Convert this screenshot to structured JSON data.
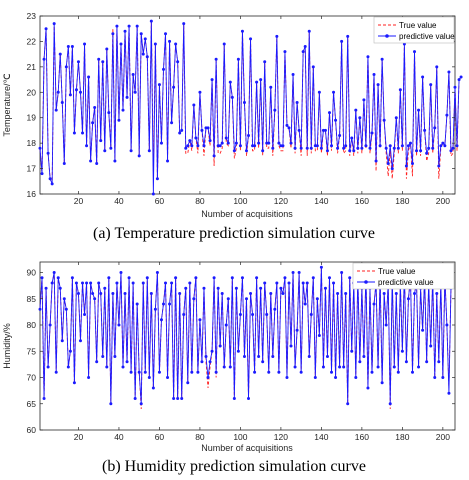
{
  "chart_data": [
    {
      "type": "line",
      "caption": "(a) Temperature prediction simulation curve",
      "xlabel": "Number of acquisitions",
      "ylabel": "Temperature/℃",
      "xlim": [
        1,
        206
      ],
      "ylim": [
        16,
        23
      ],
      "xticks": [
        20,
        40,
        60,
        80,
        100,
        120,
        140,
        160,
        180,
        200
      ],
      "yticks": [
        16,
        17,
        18,
        19,
        20,
        21,
        22,
        23
      ],
      "legend_position": "top-right",
      "colors": {
        "true": "#ff2020",
        "pred": "#1a1aff"
      },
      "series": [
        {
          "name": "True value",
          "style": "dashed",
          "values": [
            17.8,
            16.8,
            21.3,
            22.5,
            17.6,
            16.6,
            16.4,
            22.7,
            19.3,
            20.0,
            21.5,
            19.6,
            17.2,
            21.0,
            21.8,
            19.9,
            21.8,
            18.4,
            20.1,
            21.2,
            20.0,
            18.4,
            21.9,
            17.9,
            20.6,
            17.3,
            18.8,
            19.4,
            17.2,
            21.3,
            18.1,
            21.2,
            17.7,
            21.7,
            19.2,
            17.8,
            22.5,
            17.3,
            22.6,
            18.9,
            21.9,
            19.3,
            22.4,
            19.8,
            22.6,
            17.7,
            20.7,
            20.0,
            22.6,
            17.5,
            22.3,
            21.5,
            22.1,
            21.4,
            17.7,
            22.8,
            16.9,
            21.9,
            16.6,
            20.3,
            18.0,
            20.9,
            22.3,
            17.3,
            22.0,
            18.8,
            20.2,
            21.9,
            21.2,
            18.4,
            18.5,
            22.7,
            17.6,
            17.6,
            18.1,
            17.7,
            19.5,
            18.2,
            17.6,
            20.0,
            18.5,
            17.5,
            18.6,
            18.6,
            17.9,
            20.5,
            17.1,
            21.3,
            17.6,
            17.6,
            17.8,
            21.9,
            18.0,
            17.9,
            20.4,
            19.8,
            17.4,
            17.8,
            21.3,
            17.7,
            22.4,
            19.6,
            17.5,
            18.3,
            22.1,
            17.7,
            17.7,
            20.4,
            17.8,
            20.5,
            17.5,
            21.2,
            17.8,
            17.8,
            20.2,
            17.5,
            19.3,
            22.2,
            17.9,
            17.7,
            17.7,
            21.6,
            18.7,
            18.6,
            17.8,
            20.7,
            17.6,
            19.6,
            18.5,
            17.5,
            21.6,
            21.8,
            17.5,
            22.4,
            17.6,
            21.0,
            17.7,
            17.7,
            20.0,
            17.6,
            18.5,
            18.5,
            17.5,
            19.2,
            17.7,
            20.0,
            18.9,
            17.6,
            18.3,
            22.0,
            17.6,
            17.7,
            22.2,
            17.5,
            18.2,
            17.5,
            19.3,
            17.6,
            19.0,
            17.6,
            19.7,
            17.8,
            21.4,
            17.6,
            18.4,
            20.7,
            16.9,
            20.3,
            17.8,
            21.3,
            18.9,
            17.6,
            16.7,
            17.7,
            16.6,
            17.6,
            19.0,
            17.6,
            20.1,
            17.7,
            21.9,
            16.6,
            17.7,
            18.0,
            16.7,
            21.6,
            17.5,
            19.3,
            17.5,
            20.6,
            18.5,
            17.3,
            17.6,
            20.3,
            17.6,
            18.6,
            21.0,
            16.6,
            17.8,
            18.0,
            17.9,
            19.1,
            20.8,
            17.5,
            17.6,
            20.2,
            17.7,
            20.5,
            20.6
          ]
        },
        {
          "name": "predictive value",
          "style": "solid-markers",
          "values": [
            17.8,
            16.8,
            21.3,
            22.5,
            17.6,
            16.6,
            16.4,
            22.7,
            19.3,
            20.0,
            21.5,
            19.6,
            17.2,
            21.0,
            21.8,
            19.9,
            21.8,
            18.4,
            20.1,
            21.2,
            20.0,
            18.4,
            21.9,
            17.9,
            20.6,
            17.3,
            18.8,
            19.4,
            17.2,
            21.3,
            18.1,
            21.2,
            17.7,
            21.7,
            19.2,
            17.8,
            22.3,
            17.3,
            22.6,
            18.9,
            21.9,
            19.3,
            22.4,
            19.8,
            22.6,
            17.7,
            20.7,
            20.0,
            22.6,
            17.5,
            22.3,
            21.5,
            22.1,
            21.4,
            17.7,
            22.8,
            16.0,
            21.9,
            16.6,
            20.3,
            18.0,
            20.9,
            22.3,
            17.3,
            22.0,
            18.8,
            20.2,
            21.9,
            21.2,
            18.4,
            18.5,
            22.7,
            17.8,
            17.9,
            18.1,
            17.9,
            19.5,
            18.2,
            17.9,
            20.0,
            18.5,
            17.9,
            18.6,
            18.6,
            18.1,
            20.5,
            17.5,
            21.3,
            17.9,
            17.9,
            18.0,
            21.9,
            18.2,
            18.0,
            20.4,
            19.8,
            17.7,
            18.0,
            21.3,
            17.9,
            22.4,
            19.6,
            17.7,
            18.3,
            22.1,
            17.9,
            17.9,
            20.4,
            18.0,
            20.5,
            17.7,
            21.2,
            18.0,
            18.0,
            20.2,
            17.8,
            19.3,
            22.2,
            18.0,
            17.9,
            17.9,
            21.6,
            18.7,
            18.6,
            18.0,
            20.7,
            17.8,
            19.6,
            18.5,
            17.8,
            21.6,
            21.8,
            17.8,
            22.4,
            17.8,
            21.0,
            17.9,
            17.9,
            20.0,
            17.8,
            18.5,
            18.5,
            17.7,
            19.2,
            17.9,
            20.0,
            18.9,
            17.8,
            18.3,
            22.0,
            17.8,
            17.9,
            22.2,
            17.7,
            18.2,
            17.7,
            19.3,
            17.8,
            19.0,
            17.8,
            19.7,
            17.9,
            21.4,
            17.8,
            18.4,
            20.7,
            17.3,
            20.3,
            17.9,
            21.3,
            18.9,
            17.8,
            17.2,
            17.9,
            17.0,
            17.8,
            19.0,
            17.8,
            20.1,
            17.9,
            21.9,
            17.1,
            17.9,
            18.0,
            17.2,
            21.6,
            17.7,
            19.3,
            17.7,
            20.6,
            18.5,
            17.6,
            17.8,
            20.3,
            17.8,
            18.6,
            21.0,
            17.1,
            17.9,
            18.0,
            17.9,
            19.1,
            20.8,
            17.7,
            17.8,
            20.2,
            17.9,
            20.5,
            20.6
          ]
        }
      ]
    },
    {
      "type": "line",
      "caption": "(b) Humidity prediction simulation curve",
      "xlabel": "Number of acquisitions",
      "ylabel": "Humidity/%",
      "xlim": [
        1,
        206
      ],
      "ylim": [
        60,
        92
      ],
      "xticks": [
        20,
        40,
        60,
        80,
        100,
        120,
        140,
        160,
        180,
        200
      ],
      "yticks": [
        60,
        65,
        70,
        75,
        80,
        85,
        90
      ],
      "legend_position": "top-right",
      "colors": {
        "true": "#ff2020",
        "pred": "#1a1aff"
      },
      "series": [
        {
          "name": "True value",
          "style": "dashed",
          "values": [
            83.0,
            89.0,
            66.0,
            87.0,
            72.0,
            80.0,
            88.0,
            90.0,
            71.0,
            89.0,
            87.0,
            77.0,
            85.0,
            83.0,
            72.0,
            75.0,
            89.0,
            69.0,
            88.0,
            86.0,
            77.0,
            88.0,
            82.0,
            88.0,
            70.0,
            88.0,
            86.0,
            85.0,
            73.0,
            88.0,
            86.0,
            74.0,
            87.0,
            72.0,
            89.0,
            65.0,
            86.0,
            74.0,
            88.0,
            80.0,
            90.0,
            72.0,
            86.0,
            73.0,
            89.0,
            71.0,
            88.0,
            66.0,
            84.0,
            71.0,
            64.0,
            88.0,
            71.0,
            89.0,
            70.0,
            86.0,
            68.0,
            83.0,
            90.0,
            71.0,
            81.0,
            84.0,
            88.0,
            70.0,
            84.0,
            88.0,
            66.0,
            89.0,
            66.0,
            86.0,
            66.0,
            82.0,
            87.0,
            69.0,
            88.0,
            71.0,
            85.0,
            89.0,
            71.0,
            81.0,
            73.0,
            87.0,
            73.0,
            68.0,
            72.0,
            75.0,
            89.0,
            70.0,
            87.0,
            76.0,
            86.0,
            72.0,
            80.0,
            85.0,
            72.0,
            89.0,
            66.0,
            87.0,
            75.0,
            82.0,
            89.0,
            74.0,
            85.0,
            66.0,
            86.0,
            82.0,
            71.0,
            89.0,
            74.0,
            87.0,
            73.0,
            88.0,
            82.0,
            71.0,
            86.0,
            74.0,
            83.0,
            88.0,
            71.0,
            87.0,
            86.0,
            89.0,
            70.0,
            88.0,
            76.0,
            90.0,
            72.0,
            79.0,
            90.0,
            71.0,
            88.0,
            84.0,
            88.0,
            74.0,
            82.0,
            89.0,
            70.0,
            85.0,
            78.0,
            91.0,
            72.0,
            87.0,
            74.0,
            89.0,
            71.0,
            88.0,
            70.0,
            86.0,
            72.0,
            90.0,
            72.0,
            86.0,
            65.0,
            89.0,
            75.0,
            88.0,
            70.0,
            89.0,
            73.0,
            87.0,
            74.0,
            90.0,
            68.0,
            87.0,
            71.0,
            84.0,
            88.0,
            72.0,
            89.0,
            69.0,
            86.0,
            80.0,
            88.0,
            64.0,
            89.0,
            72.0,
            86.0,
            71.0,
            88.0,
            75.0,
            90.0,
            73.0,
            85.0,
            89.0,
            71.0,
            86.0,
            88.0,
            72.0,
            87.0,
            79.0,
            89.0,
            73.0,
            88.0,
            76.0,
            89.0,
            70.0,
            86.0,
            73.0,
            88.0,
            70.0,
            89.0,
            80.0,
            68.0,
            87.0
          ]
        },
        {
          "name": "predictive value",
          "style": "solid-markers",
          "values": [
            83.0,
            89.0,
            66.0,
            87.0,
            72.0,
            80.0,
            88.0,
            90.0,
            71.0,
            89.0,
            87.0,
            77.0,
            85.0,
            83.0,
            72.0,
            75.0,
            89.0,
            69.0,
            88.0,
            86.0,
            77.0,
            88.0,
            82.0,
            88.0,
            70.0,
            88.0,
            86.0,
            85.0,
            73.0,
            88.0,
            86.0,
            74.0,
            87.0,
            72.0,
            89.0,
            65.0,
            86.0,
            74.0,
            88.0,
            80.0,
            90.0,
            72.0,
            86.0,
            73.0,
            89.0,
            71.0,
            88.0,
            66.0,
            84.0,
            71.0,
            65.0,
            88.0,
            71.0,
            89.0,
            70.0,
            86.0,
            68.0,
            83.0,
            90.0,
            71.0,
            81.0,
            84.0,
            88.0,
            70.0,
            84.0,
            88.0,
            66.0,
            89.0,
            66.0,
            86.0,
            66.0,
            82.0,
            87.0,
            69.0,
            88.0,
            71.0,
            85.0,
            89.0,
            71.0,
            81.0,
            73.0,
            87.0,
            74.0,
            70.0,
            73.0,
            75.0,
            89.0,
            71.0,
            87.0,
            76.0,
            86.0,
            72.0,
            80.0,
            85.0,
            72.0,
            89.0,
            66.0,
            87.0,
            75.0,
            82.0,
            89.0,
            74.0,
            85.0,
            66.0,
            86.0,
            82.0,
            71.0,
            89.0,
            74.0,
            87.0,
            73.0,
            88.0,
            82.0,
            71.0,
            86.0,
            74.0,
            83.0,
            88.0,
            71.0,
            87.0,
            86.0,
            89.0,
            70.0,
            88.0,
            76.0,
            90.0,
            72.0,
            79.0,
            90.0,
            71.0,
            88.0,
            84.0,
            88.0,
            74.0,
            82.0,
            89.0,
            70.0,
            85.0,
            78.0,
            91.0,
            72.0,
            87.0,
            74.0,
            89.0,
            71.0,
            88.0,
            70.0,
            86.0,
            72.0,
            90.0,
            72.0,
            86.0,
            65.0,
            89.0,
            75.0,
            88.0,
            70.0,
            89.0,
            73.0,
            87.0,
            74.0,
            90.0,
            68.0,
            87.0,
            71.0,
            84.0,
            88.0,
            72.0,
            89.0,
            69.0,
            86.0,
            80.0,
            88.0,
            65.0,
            89.0,
            72.0,
            86.0,
            71.0,
            88.0,
            75.0,
            90.0,
            73.0,
            85.0,
            89.0,
            71.0,
            86.0,
            88.0,
            72.0,
            87.0,
            79.0,
            89.0,
            73.0,
            88.0,
            76.0,
            89.0,
            70.0,
            86.0,
            73.0,
            88.0,
            70.0,
            89.0,
            80.0,
            67.0,
            87.0
          ]
        }
      ]
    }
  ]
}
